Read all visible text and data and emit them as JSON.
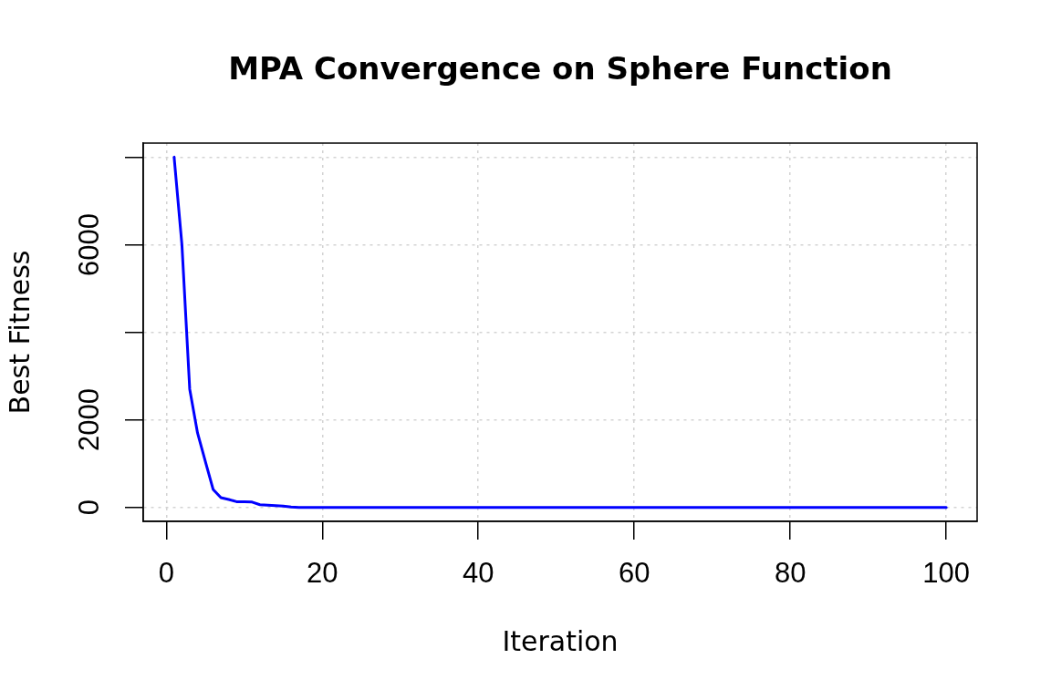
{
  "chart_data": {
    "type": "line",
    "title": "MPA Convergence on Sphere Function",
    "xlabel": "Iteration",
    "ylabel": "Best Fitness",
    "x": [
      1,
      2,
      3,
      4,
      5,
      6,
      7,
      8,
      9,
      10,
      11,
      12,
      13,
      14,
      15,
      16,
      17,
      18,
      19,
      20,
      21,
      22,
      23,
      24,
      25,
      26,
      27,
      28,
      29,
      30,
      31,
      32,
      33,
      34,
      35,
      36,
      37,
      38,
      39,
      40,
      41,
      42,
      43,
      44,
      45,
      46,
      47,
      48,
      49,
      50,
      51,
      52,
      53,
      54,
      55,
      56,
      57,
      58,
      59,
      60,
      61,
      62,
      63,
      64,
      65,
      66,
      67,
      68,
      69,
      70,
      71,
      72,
      73,
      74,
      75,
      76,
      77,
      78,
      79,
      80,
      81,
      82,
      83,
      84,
      85,
      86,
      87,
      88,
      89,
      90,
      91,
      92,
      93,
      94,
      95,
      96,
      97,
      98,
      99,
      100
    ],
    "series": [
      {
        "color": "#0000ff",
        "values": [
          8000,
          6000,
          2700,
          1700,
          1050,
          410,
          220,
          180,
          130,
          130,
          120,
          60,
          50,
          40,
          30,
          10,
          0,
          0,
          0,
          0,
          0,
          0,
          0,
          0,
          0,
          0,
          0,
          0,
          0,
          0,
          0,
          0,
          0,
          0,
          0,
          0,
          0,
          0,
          0,
          0,
          0,
          0,
          0,
          0,
          0,
          0,
          0,
          0,
          0,
          0,
          0,
          0,
          0,
          0,
          0,
          0,
          0,
          0,
          0,
          0,
          0,
          0,
          0,
          0,
          0,
          0,
          0,
          0,
          0,
          0,
          0,
          0,
          0,
          0,
          0,
          0,
          0,
          0,
          0,
          0,
          0,
          0,
          0,
          0,
          0,
          0,
          0,
          0,
          0,
          0,
          0,
          0,
          0,
          0,
          0,
          0,
          0,
          0,
          0,
          0
        ]
      }
    ],
    "xlim": [
      -2.96,
      103.96
    ],
    "ylim": [
      -320,
      8320
    ],
    "xticks": [
      0,
      20,
      40,
      60,
      80,
      100
    ],
    "yticks": [
      0,
      2000,
      {
        "value": 4000,
        "label": null
      },
      6000,
      {
        "value": 8000,
        "label": null
      }
    ],
    "grid": true,
    "legend": false,
    "marker": "none",
    "line_style": "solid"
  }
}
